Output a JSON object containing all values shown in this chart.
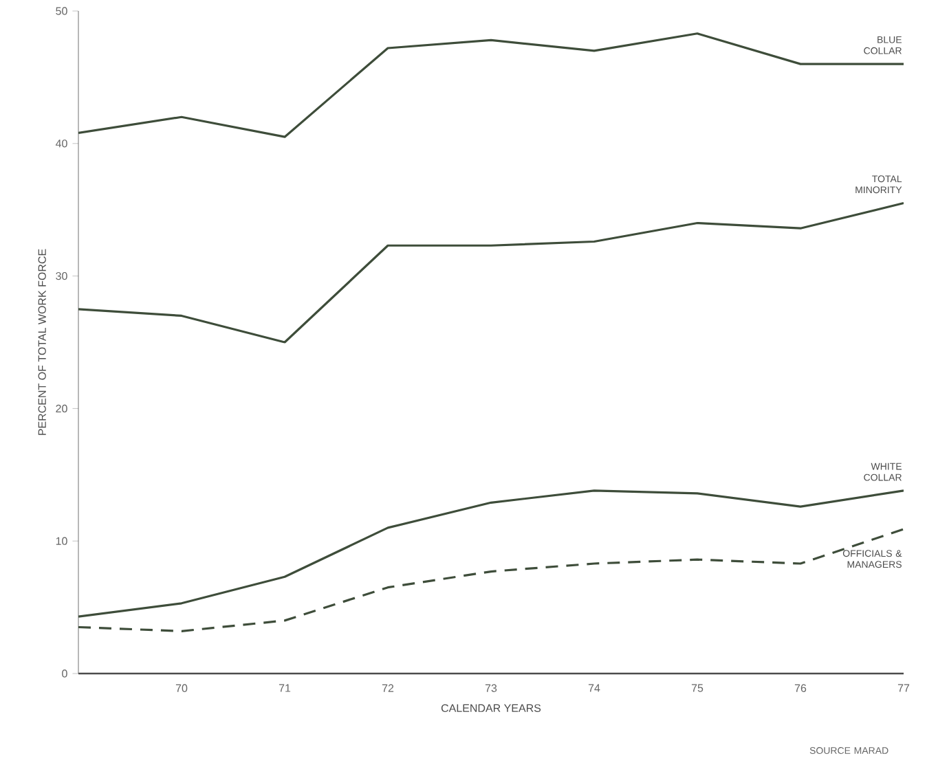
{
  "chart_data": {
    "type": "line",
    "xlabel": "CALENDAR YEARS",
    "ylabel": "PERCENT OF TOTAL WORK FORCE",
    "x": [
      69,
      70,
      71,
      72,
      73,
      74,
      75,
      76,
      77
    ],
    "xlim": [
      69,
      77
    ],
    "xticks": [
      70,
      71,
      72,
      73,
      74,
      75,
      76,
      77
    ],
    "ylim": [
      0,
      50
    ],
    "yticks": [
      0,
      10,
      20,
      30,
      40,
      50
    ],
    "grid": false,
    "legend": false,
    "marker": "none",
    "series": [
      {
        "name": "BLUE COLLAR",
        "color": "#3e4d3a",
        "line_style": "solid",
        "values": [
          40.8,
          42,
          40.5,
          47.2,
          47.8,
          47,
          48.3,
          46,
          46
        ]
      },
      {
        "name": "TOTAL MINORITY",
        "color": "#3e4d3a",
        "line_style": "solid",
        "values": [
          27.5,
          27,
          25,
          32.3,
          32.3,
          32.6,
          34,
          33.6,
          35.5
        ]
      },
      {
        "name": "WHITE COLLAR",
        "color": "#3e4d3a",
        "line_style": "solid",
        "values": [
          4.3,
          5.3,
          7.3,
          11,
          12.9,
          13.8,
          13.6,
          12.6,
          13.8
        ]
      },
      {
        "name": "OFFICIALS & MANAGERS",
        "color": "#3e4d3a",
        "line_style": "dashed",
        "values": [
          3.5,
          3.2,
          4,
          6.5,
          7.7,
          8.3,
          8.6,
          8.3,
          10.9
        ]
      }
    ],
    "annotations": [
      "SOURCE MARAD"
    ]
  }
}
